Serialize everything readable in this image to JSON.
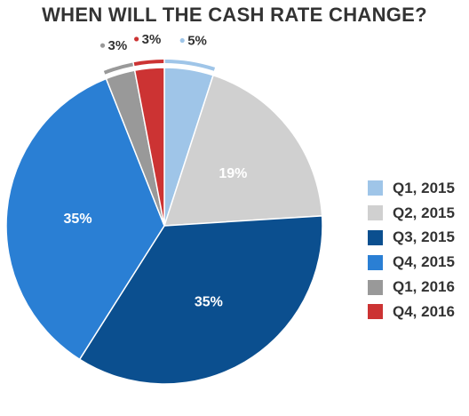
{
  "chart_data": {
    "type": "pie",
    "title": "WHEN WILL THE CASH RATE CHANGE?",
    "categories": [
      "Q1, 2015",
      "Q2, 2015",
      "Q3, 2015",
      "Q4, 2015",
      "Q1, 2016",
      "Q4, 2016"
    ],
    "values": [
      5,
      19,
      35,
      35,
      3,
      3
    ],
    "data_labels": [
      "5%",
      "19%",
      "35%",
      "35%",
      "3%",
      "3%"
    ],
    "colors": [
      "#9fc5e8",
      "#d0d0d0",
      "#0b4f8f",
      "#2a7fd4",
      "#999999",
      "#cc3333"
    ],
    "legend_position": "right"
  }
}
